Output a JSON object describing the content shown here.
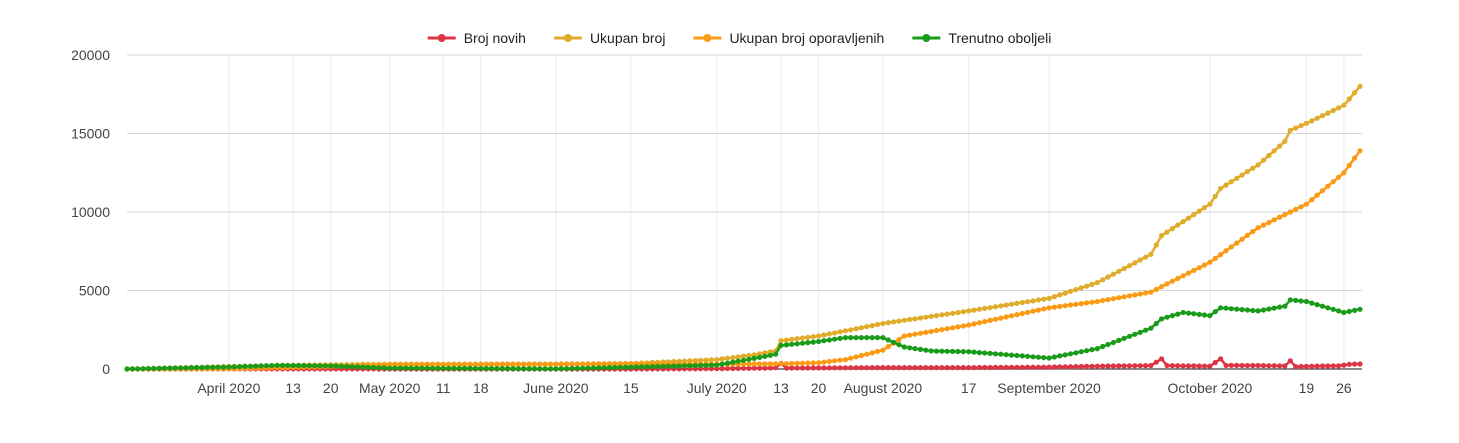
{
  "chart_data": {
    "type": "line",
    "title": "",
    "xlabel": "",
    "ylabel": "",
    "ylim": [
      0,
      20000
    ],
    "y_ticks": [
      "20000",
      "15000",
      "10000",
      "5000",
      "0"
    ],
    "y_tick_values": [
      20000,
      15000,
      10000,
      5000,
      0
    ],
    "x_range": [
      "2020-03-13",
      "2020-10-29"
    ],
    "x_ticks": [
      {
        "date": "2020-04-01",
        "label": "April 2020"
      },
      {
        "date": "2020-04-13",
        "label": "13"
      },
      {
        "date": "2020-04-20",
        "label": "20"
      },
      {
        "date": "2020-05-01",
        "label": "May 2020"
      },
      {
        "date": "2020-05-11",
        "label": "11"
      },
      {
        "date": "2020-05-18",
        "label": "18"
      },
      {
        "date": "2020-06-01",
        "label": "June 2020"
      },
      {
        "date": "2020-06-15",
        "label": "15"
      },
      {
        "date": "2020-07-01",
        "label": "July 2020"
      },
      {
        "date": "2020-07-13",
        "label": "13"
      },
      {
        "date": "2020-07-20",
        "label": "20"
      },
      {
        "date": "2020-08-01",
        "label": "August 2020"
      },
      {
        "date": "2020-08-17",
        "label": "17"
      },
      {
        "date": "2020-09-01",
        "label": "September 2020"
      },
      {
        "date": "2020-10-01",
        "label": "October 2020"
      },
      {
        "date": "2020-10-19",
        "label": "19"
      },
      {
        "date": "2020-10-26",
        "label": "26"
      }
    ],
    "grid": true,
    "legend_position": "top",
    "series": [
      {
        "name": "Broj novih",
        "color": "#dc3545",
        "points": [
          [
            "2020-03-13",
            0
          ],
          [
            "2020-04-01",
            5
          ],
          [
            "2020-05-01",
            3
          ],
          [
            "2020-06-01",
            2
          ],
          [
            "2020-06-15",
            3
          ],
          [
            "2020-07-01",
            20
          ],
          [
            "2020-07-10",
            60
          ],
          [
            "2020-07-12",
            80
          ],
          [
            "2020-07-13",
            350
          ],
          [
            "2020-07-14",
            60
          ],
          [
            "2020-07-20",
            70
          ],
          [
            "2020-08-01",
            90
          ],
          [
            "2020-08-17",
            90
          ],
          [
            "2020-09-01",
            120
          ],
          [
            "2020-09-10",
            180
          ],
          [
            "2020-09-20",
            220
          ],
          [
            "2020-09-22",
            650
          ],
          [
            "2020-09-23",
            220
          ],
          [
            "2020-10-01",
            180
          ],
          [
            "2020-10-03",
            650
          ],
          [
            "2020-10-04",
            230
          ],
          [
            "2020-10-10",
            220
          ],
          [
            "2020-10-15",
            200
          ],
          [
            "2020-10-16",
            520
          ],
          [
            "2020-10-17",
            150
          ],
          [
            "2020-10-20",
            180
          ],
          [
            "2020-10-25",
            200
          ],
          [
            "2020-10-27",
            300
          ],
          [
            "2020-10-29",
            320
          ]
        ]
      },
      {
        "name": "Ukupan broj",
        "color": "#e0ac2b",
        "points": [
          [
            "2020-03-13",
            0
          ],
          [
            "2020-03-25",
            100
          ],
          [
            "2020-04-01",
            160
          ],
          [
            "2020-04-13",
            240
          ],
          [
            "2020-05-01",
            310
          ],
          [
            "2020-06-01",
            320
          ],
          [
            "2020-06-15",
            350
          ],
          [
            "2020-07-01",
            600
          ],
          [
            "2020-07-08",
            900
          ],
          [
            "2020-07-12",
            1150
          ],
          [
            "2020-07-13",
            1800
          ],
          [
            "2020-07-20",
            2100
          ],
          [
            "2020-08-01",
            2900
          ],
          [
            "2020-08-17",
            3700
          ],
          [
            "2020-09-01",
            4500
          ],
          [
            "2020-09-10",
            5500
          ],
          [
            "2020-09-20",
            7300
          ],
          [
            "2020-09-22",
            8500
          ],
          [
            "2020-10-01",
            10500
          ],
          [
            "2020-10-03",
            11500
          ],
          [
            "2020-10-10",
            13000
          ],
          [
            "2020-10-15",
            14500
          ],
          [
            "2020-10-16",
            15200
          ],
          [
            "2020-10-20",
            15800
          ],
          [
            "2020-10-26",
            16800
          ],
          [
            "2020-10-29",
            18000
          ]
        ]
      },
      {
        "name": "Ukupan broj oporavljenih",
        "color": "#fb9b15",
        "points": [
          [
            "2020-03-13",
            0
          ],
          [
            "2020-04-01",
            20
          ],
          [
            "2020-04-20",
            150
          ],
          [
            "2020-05-01",
            260
          ],
          [
            "2020-06-01",
            300
          ],
          [
            "2020-07-01",
            310
          ],
          [
            "2020-07-13",
            330
          ],
          [
            "2020-07-20",
            400
          ],
          [
            "2020-07-25",
            600
          ],
          [
            "2020-08-01",
            1200
          ],
          [
            "2020-08-05",
            2100
          ],
          [
            "2020-08-17",
            2800
          ],
          [
            "2020-09-01",
            3900
          ],
          [
            "2020-09-10",
            4300
          ],
          [
            "2020-09-20",
            4900
          ],
          [
            "2020-10-01",
            6800
          ],
          [
            "2020-10-10",
            9000
          ],
          [
            "2020-10-19",
            10500
          ],
          [
            "2020-10-26",
            12500
          ],
          [
            "2020-10-29",
            13900
          ]
        ]
      },
      {
        "name": "Trenutno oboljeli",
        "color": "#1a9c1a",
        "points": [
          [
            "2020-03-13",
            0
          ],
          [
            "2020-04-01",
            130
          ],
          [
            "2020-04-10",
            230
          ],
          [
            "2020-04-20",
            200
          ],
          [
            "2020-05-01",
            60
          ],
          [
            "2020-06-01",
            10
          ],
          [
            "2020-07-01",
            250
          ],
          [
            "2020-07-10",
            800
          ],
          [
            "2020-07-12",
            950
          ],
          [
            "2020-07-13",
            1500
          ],
          [
            "2020-07-20",
            1750
          ],
          [
            "2020-07-25",
            2000
          ],
          [
            "2020-08-01",
            2000
          ],
          [
            "2020-08-05",
            1400
          ],
          [
            "2020-08-10",
            1150
          ],
          [
            "2020-08-17",
            1100
          ],
          [
            "2020-09-01",
            700
          ],
          [
            "2020-09-10",
            1300
          ],
          [
            "2020-09-20",
            2600
          ],
          [
            "2020-09-22",
            3200
          ],
          [
            "2020-09-26",
            3600
          ],
          [
            "2020-10-01",
            3400
          ],
          [
            "2020-10-03",
            3900
          ],
          [
            "2020-10-10",
            3700
          ],
          [
            "2020-10-15",
            4000
          ],
          [
            "2020-10-16",
            4400
          ],
          [
            "2020-10-19",
            4300
          ],
          [
            "2020-10-24",
            3800
          ],
          [
            "2020-10-26",
            3600
          ],
          [
            "2020-10-29",
            3800
          ]
        ]
      }
    ]
  }
}
